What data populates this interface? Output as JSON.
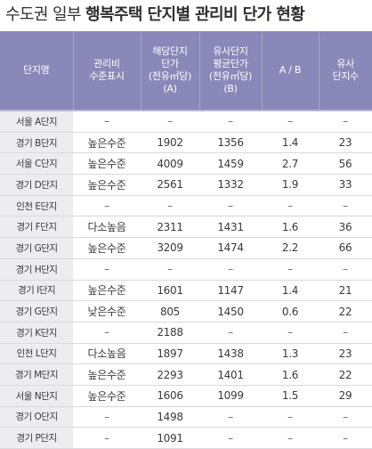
{
  "title": {
    "prefix": "수도권 일부",
    "emphasis": "행복주택 단지별 관리비 단가 현황"
  },
  "columns": [
    {
      "lines": [
        "단지명"
      ]
    },
    {
      "lines": [
        "관리비",
        "수준표시"
      ]
    },
    {
      "lines": [
        "해당단지",
        "단가",
        "(전유㎡당)",
        "(A)"
      ]
    },
    {
      "lines": [
        "유사단지",
        "평균단가",
        "(전유㎡당)",
        "(B)"
      ]
    },
    {
      "lines": [
        "A / B"
      ]
    },
    {
      "lines": [
        "유사",
        "단지수"
      ]
    }
  ],
  "rows": [
    [
      "서울 A단지",
      "–",
      "–",
      "–",
      "–",
      "–"
    ],
    [
      "경기 B단지",
      "높은수준",
      "1902",
      "1356",
      "1.4",
      "23"
    ],
    [
      "서울 C단지",
      "높은수준",
      "4009",
      "1459",
      "2.7",
      "56"
    ],
    [
      "경기 D단지",
      "높은수준",
      "2561",
      "1332",
      "1.9",
      "33"
    ],
    [
      "인천 E단지",
      "–",
      "–",
      "–",
      "–",
      "–"
    ],
    [
      "경기 F단지",
      "다소높음",
      "2311",
      "1431",
      "1.6",
      "36"
    ],
    [
      "경기 G단지",
      "높은수준",
      "3209",
      "1474",
      "2.2",
      "66"
    ],
    [
      "경기 H단지",
      "–",
      "–",
      "–",
      "–",
      "–"
    ],
    [
      "경기 I단지",
      "높은수준",
      "1601",
      "1147",
      "1.4",
      "21"
    ],
    [
      "경기 G단지",
      "낮은수준",
      "805",
      "1450",
      "0.6",
      "22"
    ],
    [
      "경기 K단지",
      "–",
      "2188",
      "–",
      "–",
      "–"
    ],
    [
      "인천 L단지",
      "다소높음",
      "1897",
      "1438",
      "1.3",
      "23"
    ],
    [
      "경기 M단지",
      "높은수준",
      "2293",
      "1401",
      "1.6",
      "22"
    ],
    [
      "서울 N단지",
      "높은수준",
      "1606",
      "1099",
      "1.5",
      "29"
    ],
    [
      "경기 O단지",
      "–",
      "1498",
      "–",
      "–",
      "–"
    ],
    [
      "경기 P단지",
      "–",
      "1091",
      "–",
      "–",
      "–"
    ]
  ]
}
